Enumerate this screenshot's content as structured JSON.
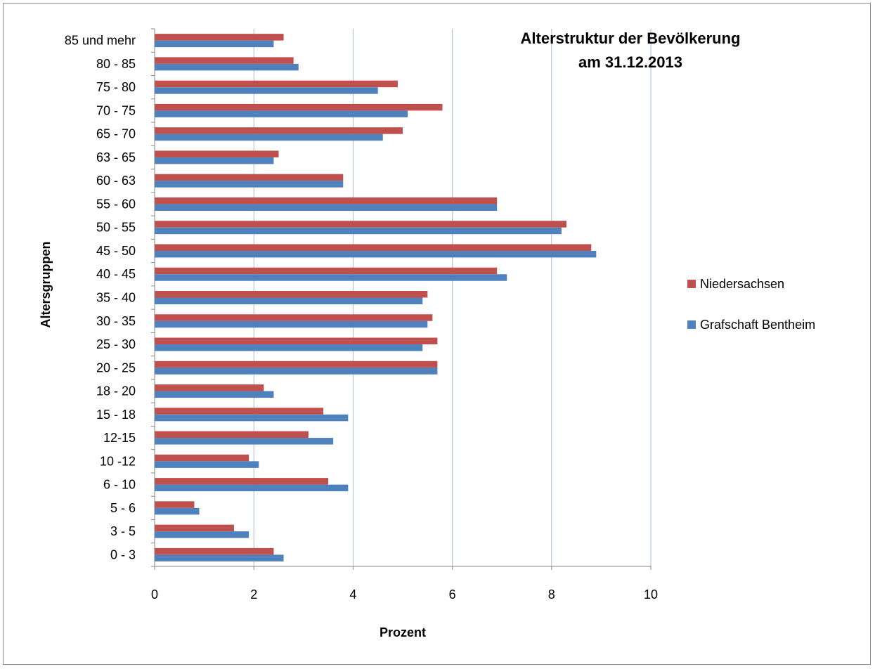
{
  "chart_data": {
    "type": "bar",
    "orientation": "horizontal",
    "title": "Alterstruktur der Bevölkerung",
    "title_line2": "am 31.12.2013",
    "xlabel": "Prozent",
    "ylabel": "Altersgruppen",
    "xlim": [
      0,
      10
    ],
    "xticks": [
      0,
      2,
      4,
      6,
      8,
      10
    ],
    "grid": "vertical",
    "legend_position": "right",
    "categories": [
      "0 - 3",
      "3 - 5",
      "5 - 6",
      "6 - 10",
      "10 -12",
      "12-15",
      "15 - 18",
      "18 - 20",
      "20 - 25",
      "25 - 30",
      "30 - 35",
      "35 - 40",
      "40 - 45",
      "45 - 50",
      "50 - 55",
      "55 - 60",
      "60 - 63",
      "63 - 65",
      "65 - 70",
      "70 - 75",
      "75 - 80",
      "80 - 85",
      "85 und mehr"
    ],
    "series": [
      {
        "name": "Niedersachsen",
        "color": "#c0504d",
        "values": [
          2.4,
          1.6,
          0.8,
          3.5,
          1.9,
          3.1,
          3.4,
          2.2,
          5.7,
          5.7,
          5.6,
          5.5,
          6.9,
          8.8,
          8.3,
          6.9,
          3.8,
          2.5,
          5.0,
          5.8,
          4.9,
          2.8,
          2.6
        ]
      },
      {
        "name": "Grafschaft Bentheim",
        "color": "#4f81bd",
        "values": [
          2.6,
          1.9,
          0.9,
          3.9,
          2.1,
          3.6,
          3.9,
          2.4,
          5.7,
          5.4,
          5.5,
          5.4,
          7.1,
          8.9,
          8.2,
          6.9,
          3.8,
          2.4,
          4.6,
          5.1,
          4.5,
          2.9,
          2.4
        ]
      }
    ]
  }
}
